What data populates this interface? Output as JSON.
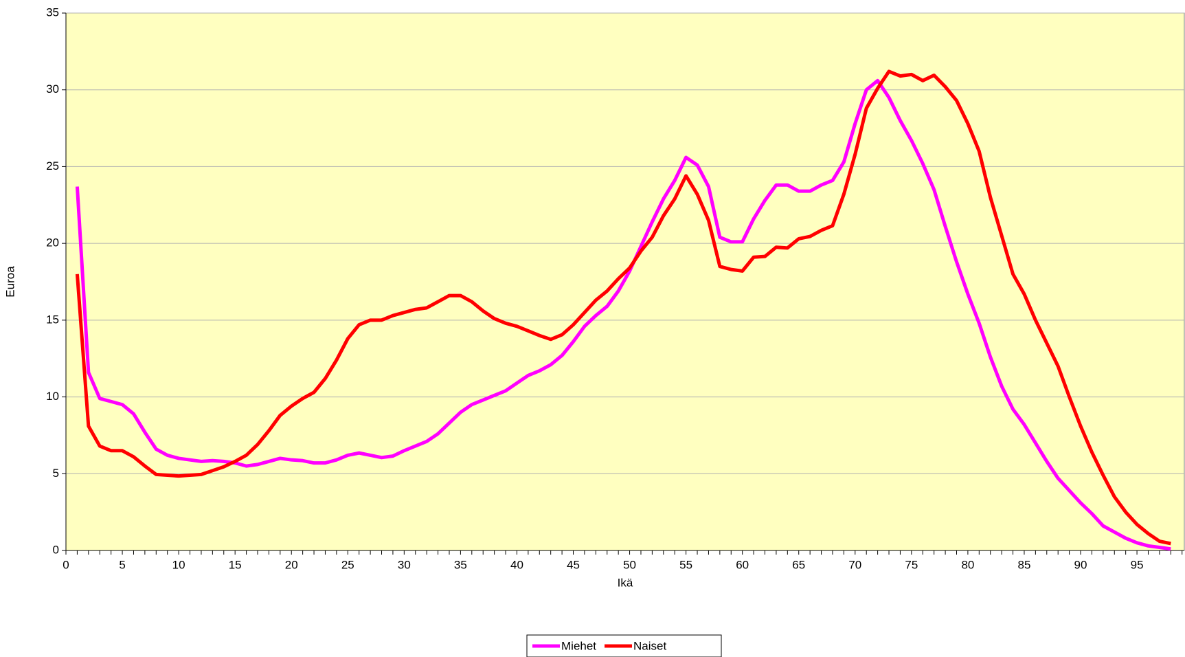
{
  "chart_data": {
    "type": "line",
    "x": [
      1,
      2,
      3,
      4,
      5,
      6,
      7,
      8,
      9,
      10,
      11,
      12,
      13,
      14,
      15,
      16,
      17,
      18,
      19,
      20,
      21,
      22,
      23,
      24,
      25,
      26,
      27,
      28,
      29,
      30,
      31,
      32,
      33,
      34,
      35,
      36,
      37,
      38,
      39,
      40,
      41,
      42,
      43,
      44,
      45,
      46,
      47,
      48,
      49,
      50,
      51,
      52,
      53,
      54,
      55,
      56,
      57,
      58,
      59,
      60,
      61,
      62,
      63,
      64,
      65,
      66,
      67,
      68,
      69,
      70,
      71,
      72,
      73,
      74,
      75,
      76,
      77,
      78,
      79,
      80,
      81,
      82,
      83,
      84,
      85,
      86,
      87,
      88,
      89,
      90,
      91,
      92,
      93,
      94,
      95,
      96,
      97,
      98
    ],
    "series": [
      {
        "name": "Miehet",
        "color": "#ff00ff",
        "values": [
          23.7,
          11.6,
          9.9,
          9.7,
          9.5,
          8.9,
          7.7,
          6.6,
          6.2,
          6.0,
          5.9,
          5.8,
          5.85,
          5.8,
          5.7,
          5.5,
          5.6,
          5.8,
          6.0,
          5.9,
          5.85,
          5.7,
          5.7,
          5.9,
          6.2,
          6.35,
          6.2,
          6.05,
          6.15,
          6.5,
          6.8,
          7.1,
          7.6,
          8.3,
          9.0,
          9.5,
          9.8,
          10.1,
          10.4,
          10.9,
          11.4,
          11.7,
          12.1,
          12.7,
          13.6,
          14.6,
          15.3,
          15.9,
          16.9,
          18.2,
          19.8,
          21.4,
          22.9,
          24.1,
          25.6,
          25.1,
          23.7,
          20.4,
          20.1,
          20.1,
          21.6,
          22.8,
          23.8,
          23.8,
          23.4,
          23.4,
          23.8,
          24.1,
          25.3,
          27.8,
          30.0,
          30.6,
          29.5,
          28.0,
          26.7,
          25.2,
          23.5,
          21.1,
          18.8,
          16.7,
          14.8,
          12.6,
          10.7,
          9.2,
          8.2,
          7.0,
          5.8,
          4.7,
          3.9,
          3.1,
          2.4,
          1.6,
          1.2,
          0.8,
          0.5,
          0.3,
          0.2,
          0.1
        ]
      },
      {
        "name": "Naiset",
        "color": "#ff0000",
        "values": [
          18.0,
          8.1,
          6.8,
          6.5,
          6.5,
          6.1,
          5.5,
          4.95,
          4.9,
          4.85,
          4.9,
          4.95,
          5.2,
          5.45,
          5.8,
          6.2,
          6.9,
          7.8,
          8.8,
          9.4,
          9.9,
          10.3,
          11.2,
          12.4,
          13.8,
          14.7,
          15.0,
          15.0,
          15.3,
          15.5,
          15.7,
          15.8,
          16.2,
          16.6,
          16.6,
          16.2,
          15.6,
          15.1,
          14.8,
          14.6,
          14.3,
          14.0,
          13.75,
          14.05,
          14.7,
          15.5,
          16.3,
          16.9,
          17.7,
          18.4,
          19.5,
          20.4,
          21.8,
          22.9,
          24.4,
          23.2,
          21.5,
          18.5,
          18.3,
          18.2,
          19.1,
          19.15,
          19.75,
          19.7,
          20.3,
          20.45,
          20.85,
          21.15,
          23.2,
          25.8,
          28.8,
          30.1,
          31.2,
          30.9,
          31.0,
          30.6,
          30.95,
          30.2,
          29.3,
          27.8,
          26.0,
          23.0,
          20.5,
          18.0,
          16.7,
          15.0,
          13.5,
          12.0,
          10.0,
          8.1,
          6.4,
          4.9,
          3.5,
          2.5,
          1.7,
          1.1,
          0.6,
          0.45
        ]
      }
    ],
    "xlabel": "Ikä",
    "ylabel": "Euroa",
    "xlim": [
      0,
      99.2
    ],
    "xticks": [
      0,
      5,
      10,
      15,
      20,
      25,
      30,
      35,
      40,
      45,
      50,
      55,
      60,
      65,
      70,
      75,
      80,
      85,
      90,
      95
    ],
    "ylim": [
      0,
      35
    ],
    "yticks": [
      0,
      5,
      10,
      15,
      20,
      25,
      30,
      35
    ],
    "grid": true,
    "legend": "bottom",
    "background": "#ffffc0"
  }
}
